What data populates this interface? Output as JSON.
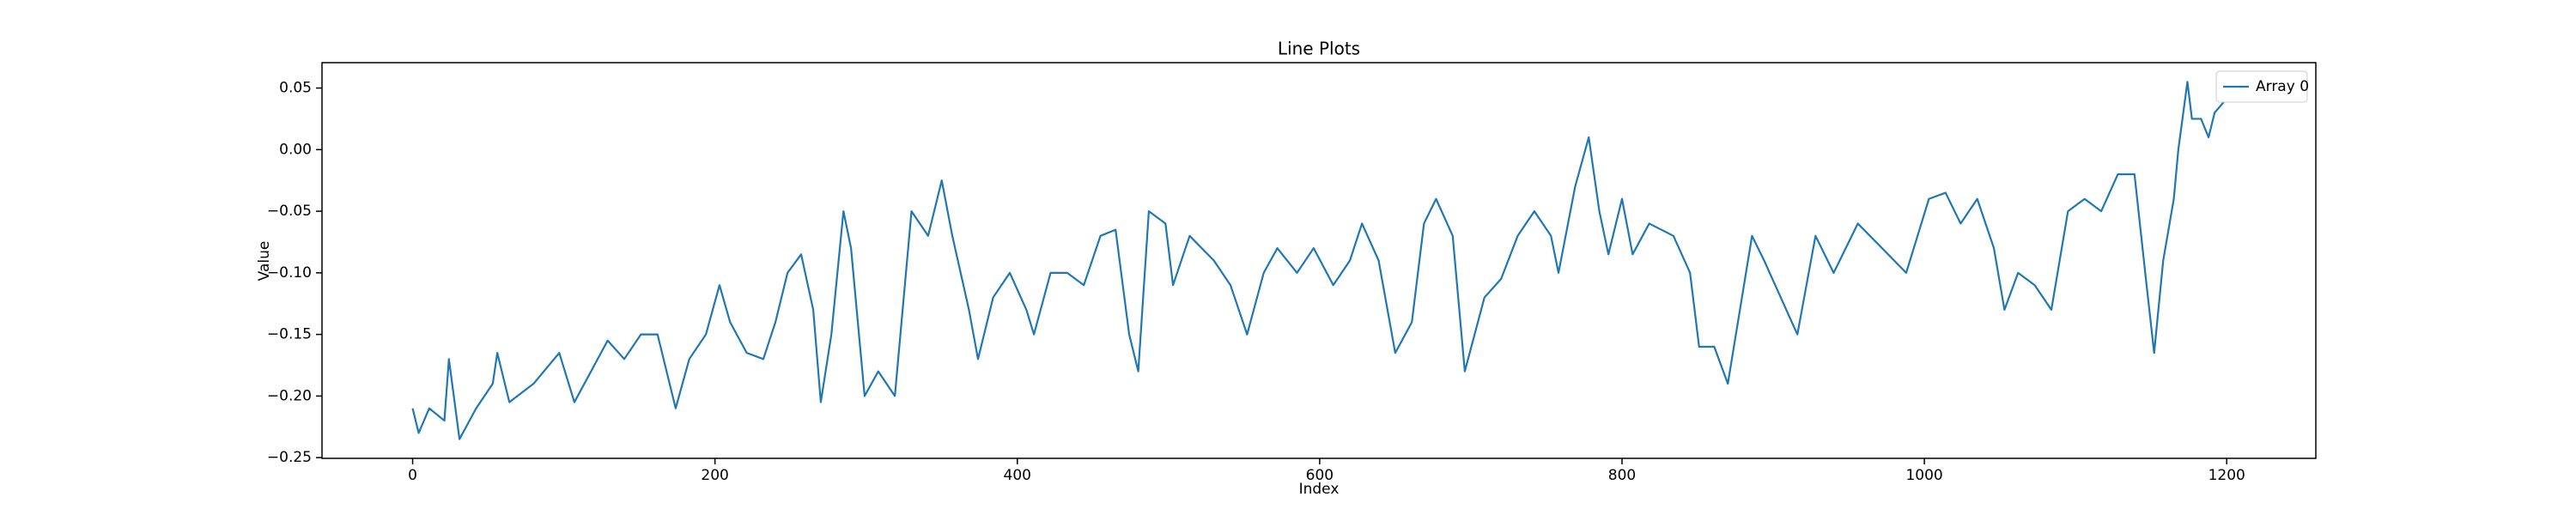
{
  "chart_data": {
    "type": "line",
    "title": "Line Plots",
    "x_label": "Index",
    "y_label": "Value",
    "x": [
      0,
      4,
      11,
      21,
      24,
      31,
      42,
      53,
      56,
      64,
      80,
      97,
      107,
      129,
      140,
      151,
      162,
      174,
      183,
      194,
      203,
      210,
      221,
      232,
      240,
      248,
      257,
      265,
      270,
      277,
      285,
      290,
      299,
      308,
      319,
      330,
      341,
      350,
      357,
      368,
      374,
      384,
      395,
      406,
      411,
      422,
      433,
      444,
      455,
      465,
      474,
      480,
      487,
      498,
      503,
      514,
      530,
      541,
      552,
      563,
      572,
      585,
      596,
      609,
      620,
      628,
      639,
      650,
      661,
      669,
      677,
      688,
      696,
      709,
      720,
      731,
      742,
      753,
      758,
      769,
      778,
      785,
      791,
      800,
      807,
      818,
      834,
      845,
      851,
      861,
      870,
      878,
      886,
      894,
      905,
      916,
      928,
      940,
      956,
      972,
      988,
      1003,
      1014,
      1024,
      1035,
      1046,
      1053,
      1062,
      1073,
      1084,
      1095,
      1106,
      1117,
      1128,
      1139,
      1147,
      1152,
      1158,
      1165,
      1168,
      1174,
      1177,
      1183,
      1188,
      1192,
      1199
    ],
    "series": [
      {
        "name": "Array 0",
        "color": "#1f77b4",
        "values": [
          -0.21,
          -0.23,
          -0.21,
          -0.22,
          -0.17,
          -0.235,
          -0.21,
          -0.19,
          -0.165,
          -0.205,
          -0.19,
          -0.165,
          -0.205,
          -0.155,
          -0.17,
          -0.15,
          -0.15,
          -0.21,
          -0.17,
          -0.15,
          -0.11,
          -0.14,
          -0.165,
          -0.17,
          -0.14,
          -0.1,
          -0.085,
          -0.13,
          -0.205,
          -0.15,
          -0.05,
          -0.08,
          -0.2,
          -0.18,
          -0.2,
          -0.05,
          -0.07,
          -0.025,
          -0.07,
          -0.13,
          -0.17,
          -0.12,
          -0.1,
          -0.13,
          -0.15,
          -0.1,
          -0.1,
          -0.11,
          -0.07,
          -0.065,
          -0.15,
          -0.18,
          -0.05,
          -0.06,
          -0.11,
          -0.07,
          -0.09,
          -0.11,
          -0.15,
          -0.1,
          -0.08,
          -0.1,
          -0.08,
          -0.11,
          -0.09,
          -0.06,
          -0.09,
          -0.165,
          -0.14,
          -0.06,
          -0.04,
          -0.07,
          -0.18,
          -0.12,
          -0.105,
          -0.07,
          -0.05,
          -0.07,
          -0.1,
          -0.03,
          0.01,
          -0.05,
          -0.085,
          -0.04,
          -0.085,
          -0.06,
          -0.07,
          -0.1,
          -0.16,
          -0.16,
          -0.19,
          -0.13,
          -0.07,
          -0.09,
          -0.12,
          -0.15,
          -0.07,
          -0.1,
          -0.06,
          -0.08,
          -0.1,
          -0.04,
          -0.035,
          -0.06,
          -0.04,
          -0.08,
          -0.13,
          -0.1,
          -0.11,
          -0.13,
          -0.05,
          -0.04,
          -0.05,
          -0.02,
          -0.02,
          -0.11,
          -0.165,
          -0.09,
          -0.04,
          0.0,
          0.055,
          0.025,
          0.025,
          0.01,
          0.03,
          0.04
        ]
      }
    ],
    "xlim": [
      -59.95,
      1258.95
    ],
    "xticks": [
      0,
      200,
      400,
      600,
      800,
      1000,
      1200
    ],
    "ylim": [
      -0.2506,
      0.0706
    ],
    "yticks": [
      {
        "value": -0.25,
        "label": "−0.25"
      },
      {
        "value": -0.2,
        "label": "−0.20"
      },
      {
        "value": -0.15,
        "label": "−0.15"
      },
      {
        "value": -0.1,
        "label": "−0.10"
      },
      {
        "value": -0.05,
        "label": "−0.05"
      },
      {
        "value": 0,
        "label": "0.00"
      },
      {
        "value": 0.05,
        "label": "0.05"
      }
    ],
    "legend": "upper right",
    "grid": false
  }
}
